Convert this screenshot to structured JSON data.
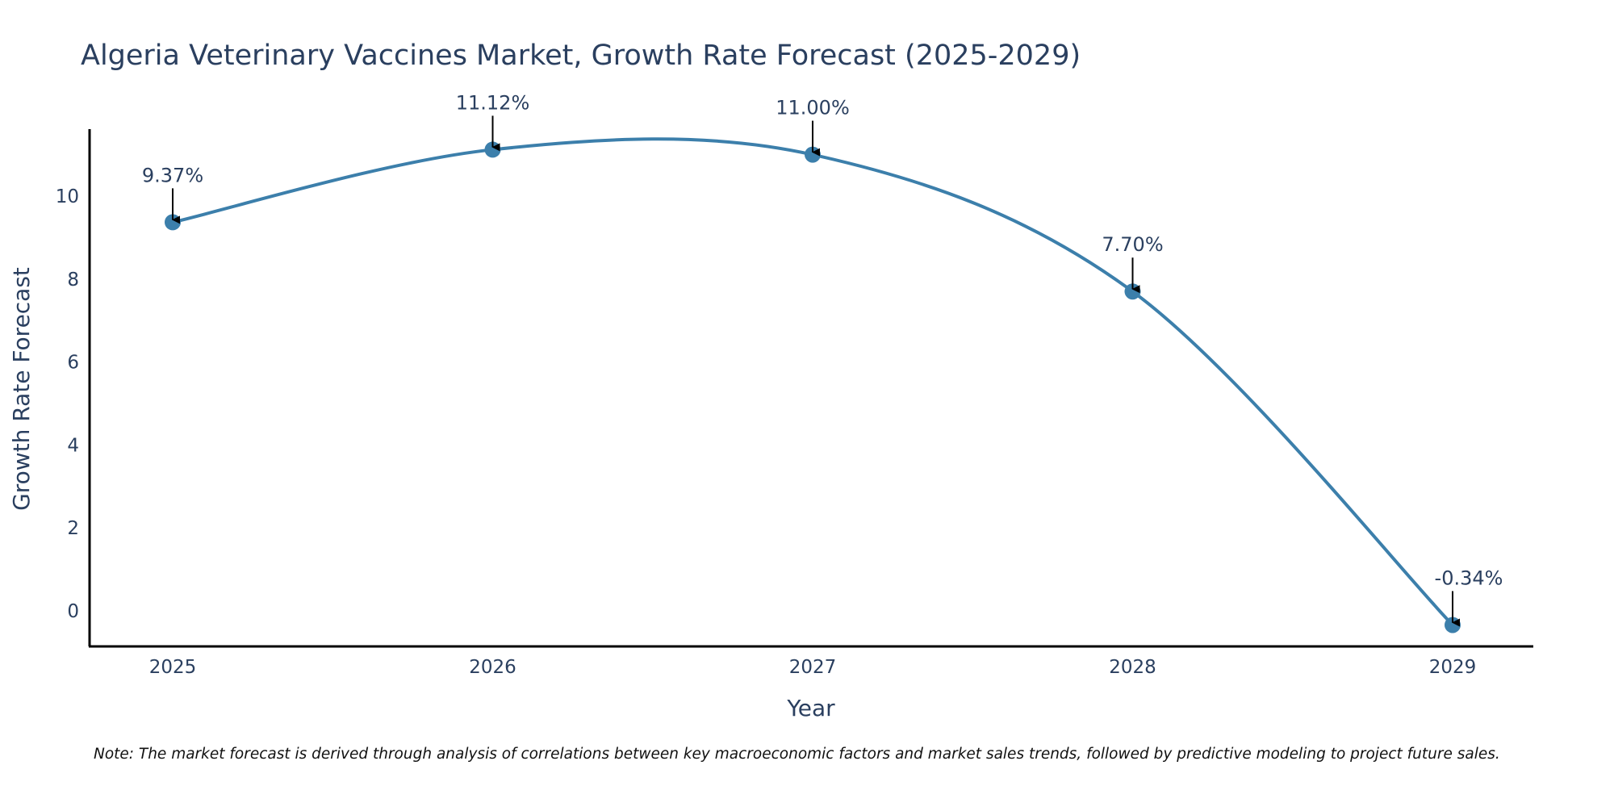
{
  "chart_data": {
    "type": "line",
    "title": "Algeria Veterinary Vaccines Market, Growth Rate Forecast (2025-2029)",
    "xlabel": "Year",
    "ylabel": "Growth Rate Forecast",
    "categories": [
      "2025",
      "2026",
      "2027",
      "2028",
      "2029"
    ],
    "series": [
      {
        "name": "Growth Rate Forecast",
        "values": [
          9.37,
          11.12,
          11.0,
          7.7,
          -0.34
        ],
        "labels": [
          "9.37%",
          "11.12%",
          "11.00%",
          "7.70%",
          "-0.34%"
        ],
        "color": "#3c7fab"
      }
    ],
    "y_ticks": [
      0,
      2,
      4,
      6,
      8,
      10
    ],
    "y_tick_labels": [
      "0",
      "2",
      "4",
      "6",
      "8",
      "10"
    ],
    "ylim": [
      -0.9,
      11.6
    ],
    "grid": false,
    "note": "Note: The market forecast is derived through analysis of correlations between key macroeconomic factors and market sales trends, followed by predictive modeling to project future sales."
  },
  "colors": {
    "text": "#2a3f5f",
    "line": "#3c7fab",
    "axis": "#000000",
    "arrow": "#000000"
  }
}
